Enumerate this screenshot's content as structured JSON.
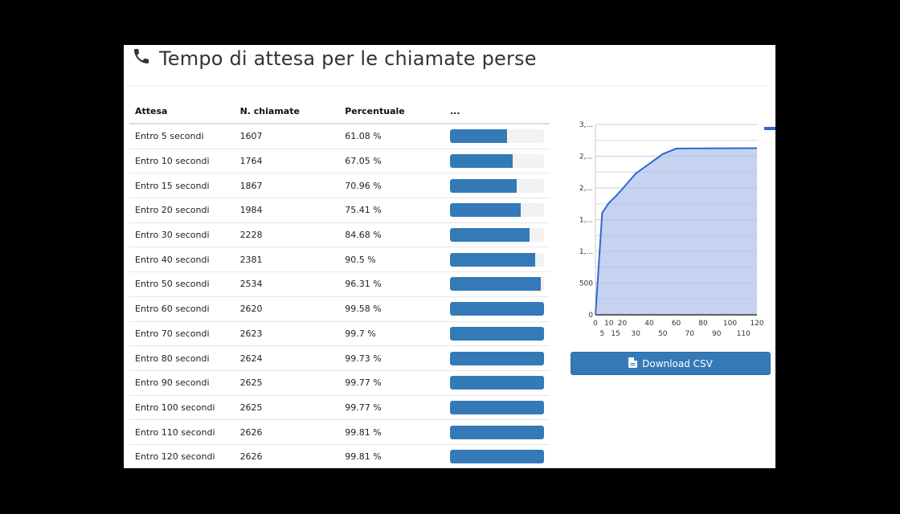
{
  "header": {
    "icon": "phone-icon",
    "title": "Tempo di attesa per le chiamate perse"
  },
  "table": {
    "columns": [
      "Attesa",
      "N. chiamate",
      "Percentuale",
      "..."
    ],
    "rows": [
      {
        "label": "Entro 5 secondi",
        "count": "1607",
        "percent": "61.08 %",
        "value": 61.08
      },
      {
        "label": "Entro 10 secondi",
        "count": "1764",
        "percent": "67.05 %",
        "value": 67.05
      },
      {
        "label": "Entro 15 secondi",
        "count": "1867",
        "percent": "70.96 %",
        "value": 70.96
      },
      {
        "label": "Entro 20 secondi",
        "count": "1984",
        "percent": "75.41 %",
        "value": 75.41
      },
      {
        "label": "Entro 30 secondi",
        "count": "2228",
        "percent": "84.68 %",
        "value": 84.68
      },
      {
        "label": "Entro 40 secondi",
        "count": "2381",
        "percent": "90.5 %",
        "value": 90.5
      },
      {
        "label": "Entro 50 secondi",
        "count": "2534",
        "percent": "96.31 %",
        "value": 96.31
      },
      {
        "label": "Entro 60 secondi",
        "count": "2620",
        "percent": "99.58 %",
        "value": 99.58
      },
      {
        "label": "Entro 70 secondi",
        "count": "2623",
        "percent": "99.7 %",
        "value": 99.7
      },
      {
        "label": "Entro 80 secondi",
        "count": "2624",
        "percent": "99.73 %",
        "value": 99.73
      },
      {
        "label": "Entro 90 secondi",
        "count": "2625",
        "percent": "99.77 %",
        "value": 99.77
      },
      {
        "label": "Entro 100 secondi",
        "count": "2625",
        "percent": "99.77 %",
        "value": 99.77
      },
      {
        "label": "Entro 110 secondi",
        "count": "2626",
        "percent": "99.81 %",
        "value": 99.81
      },
      {
        "label": "Entro 120 secondi",
        "count": "2626",
        "percent": "99.81 %",
        "value": 99.81
      }
    ]
  },
  "colors": {
    "bar": "#337ab7",
    "bar_track": "#f2f2f2",
    "area_line": "#3366cc",
    "area_fill": "#c2d1ef"
  },
  "chart_data": {
    "type": "area",
    "x": [
      0,
      5,
      10,
      15,
      20,
      30,
      40,
      50,
      60,
      70,
      80,
      90,
      100,
      110,
      120
    ],
    "values": [
      0,
      1607,
      1764,
      1867,
      1984,
      2228,
      2381,
      2534,
      2620,
      2623,
      2624,
      2625,
      2625,
      2626,
      2626
    ],
    "y_tick_labels": [
      "0",
      "500",
      "1,...",
      "1,...",
      "2,...",
      "2,...",
      "3,..."
    ],
    "y_ticks": [
      0,
      500,
      1000,
      1500,
      2000,
      2500,
      3000
    ],
    "x_tick_labels_row1": [
      "0",
      "10",
      "20",
      "40",
      "60",
      "80",
      "100",
      "120"
    ],
    "x_tick_labels_row2": [
      "5",
      "15",
      "30",
      "50",
      "70",
      "90",
      "110"
    ],
    "ylim": [
      0,
      3000
    ],
    "grid": true,
    "legend_position": "right",
    "title": "",
    "xlabel": "",
    "ylabel": ""
  },
  "actions": {
    "download_label": "Download CSV",
    "download_icon": "file-icon"
  }
}
